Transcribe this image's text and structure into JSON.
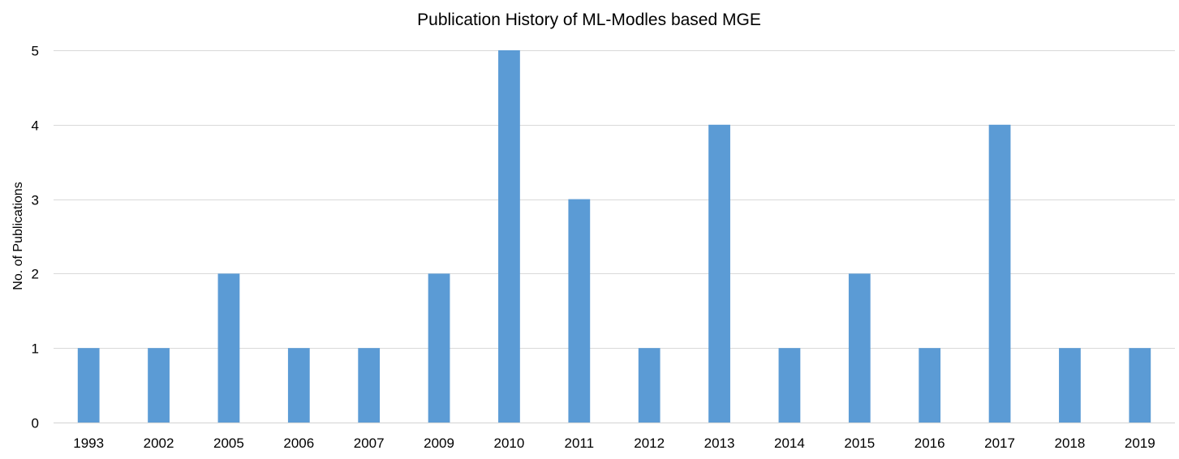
{
  "chart_data": {
    "type": "bar",
    "title": "Publication History of ML-Modles based MGE",
    "xlabel": "",
    "ylabel": "No. of Publications",
    "categories": [
      "1993",
      "2002",
      "2005",
      "2006",
      "2007",
      "2009",
      "2010",
      "2011",
      "2012",
      "2013",
      "2014",
      "2015",
      "2016",
      "2017",
      "2018",
      "2019"
    ],
    "values": [
      1,
      1,
      2,
      1,
      1,
      2,
      5,
      3,
      1,
      4,
      1,
      2,
      1,
      4,
      1,
      1
    ],
    "ylim": [
      0,
      5
    ],
    "yticks": [
      0,
      1,
      2,
      3,
      4,
      5
    ],
    "grid": true,
    "legend": "none",
    "bar_color": "#5b9bd5"
  }
}
